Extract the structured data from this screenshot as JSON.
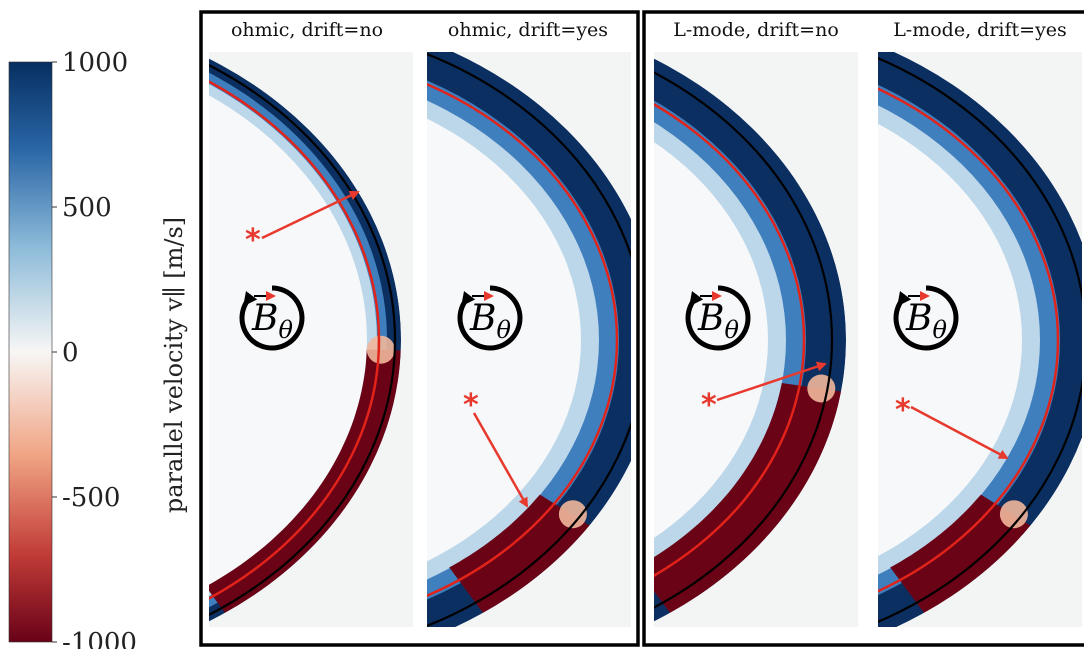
{
  "colorbar": {
    "label": "parallel velocity v∥ [m/s]",
    "ticks": [
      "1000",
      "500",
      "0",
      "-500",
      "-1000"
    ],
    "tick_values": [
      1000,
      500,
      0,
      -500,
      -1000
    ],
    "range": [
      -1000,
      1000
    ]
  },
  "groups": [
    {
      "panels": [
        {
          "title": "ohmic, drift=no",
          "marker": "*",
          "scale": 0.53,
          "bands": "ohmic-no"
        },
        {
          "title": "ohmic, drift=yes",
          "marker": "*",
          "scale": 0.78,
          "bands": "ohmic-yes"
        }
      ]
    },
    {
      "panels": [
        {
          "title": "L-mode, drift=no",
          "marker": "*",
          "scale": 0.63,
          "bands": "lmode-no"
        },
        {
          "title": "L-mode, drift=yes",
          "marker": "*",
          "scale": 0.8,
          "bands": "lmode-yes"
        }
      ]
    }
  ],
  "annotation": {
    "symbol": "B",
    "subscript": "θ"
  },
  "colors": {
    "separatrix_red": "#e2231a",
    "wall_black": "#000000",
    "arrow_red": "#e8392e",
    "background": "#f3f4f4",
    "deep_blue": "#0b2f61",
    "deep_red": "#6a0316"
  }
}
